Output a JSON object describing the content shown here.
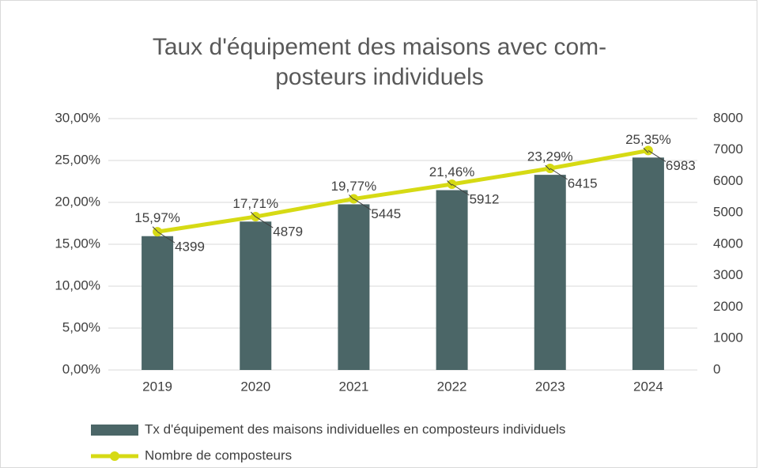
{
  "chart_data": {
    "type": "bar",
    "title": [
      "Taux d'équipement des maisons avec com-",
      "posteurs individuels"
    ],
    "categories": [
      "2019",
      "2020",
      "2021",
      "2022",
      "2023",
      "2024"
    ],
    "series": [
      {
        "name": "Tx d'équipement des maisons individuelles en composteurs individuels",
        "type": "bar",
        "color": "#4b6667",
        "values": [
          15.97,
          17.71,
          19.77,
          21.46,
          23.29,
          25.35
        ],
        "value_labels": [
          "15,97%",
          "17,71%",
          "19,77%",
          "21,46%",
          "23,29%",
          "25,35%"
        ]
      },
      {
        "name": "Nombre de composteurs",
        "type": "line",
        "axis": "y2",
        "color": "#d6da14",
        "values": [
          4399,
          4879,
          5445,
          5912,
          6415,
          6983
        ]
      }
    ],
    "ylim": [
      0,
      30
    ],
    "yticks": [
      {
        "value": 0,
        "label": "0,00%"
      },
      {
        "value": 5,
        "label": "5,00%"
      },
      {
        "value": 10,
        "label": "10,00%"
      },
      {
        "value": 15,
        "label": "15,00%"
      },
      {
        "value": 20,
        "label": "20,00%"
      },
      {
        "value": 25,
        "label": "25,00%"
      },
      {
        "value": 30,
        "label": "30,00%"
      }
    ],
    "y2lim": [
      0,
      8000
    ],
    "y2ticks": [
      0,
      1000,
      2000,
      3000,
      4000,
      5000,
      6000,
      7000,
      8000
    ],
    "grid": true,
    "legend": "bottom"
  }
}
